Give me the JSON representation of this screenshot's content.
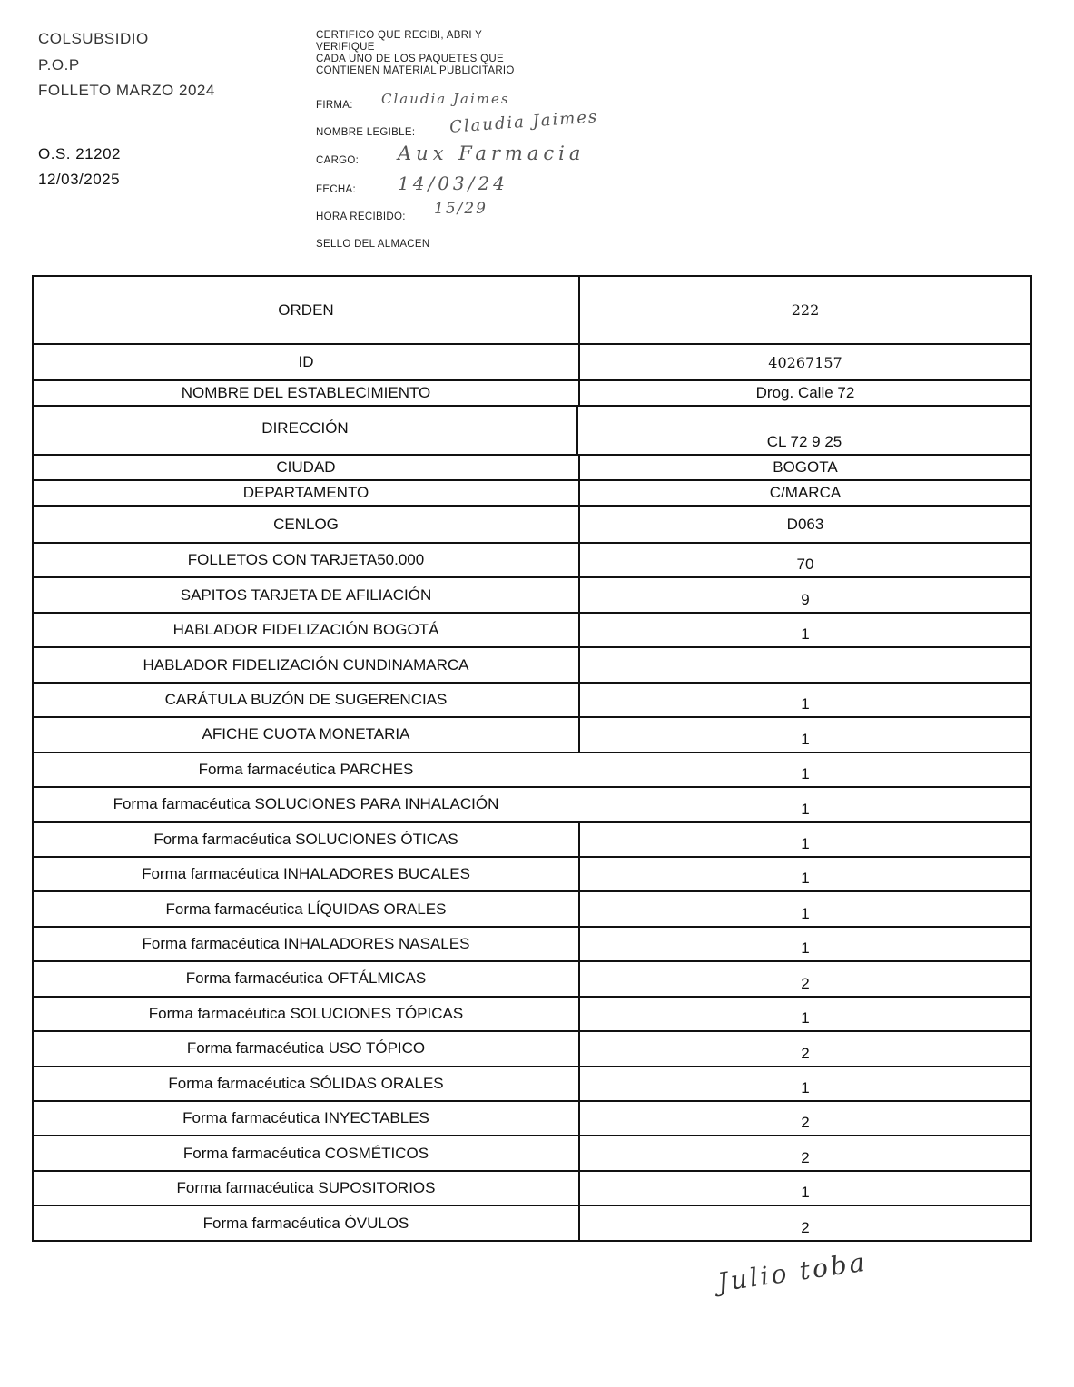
{
  "header_left": {
    "company": "COLSUBSIDIO",
    "pop": "P.O.P",
    "campaign": "FOLLETO MARZO 2024",
    "os": "O.S. 21202",
    "date": "12/03/2025"
  },
  "certification": {
    "statement_lines": [
      "CERTIFICO QUE RECIBI, ABRI Y",
      "VERIFIQUE",
      "CADA UNO DE LOS PAQUETES QUE",
      "CONTIENEN MATERIAL PUBLICITARIO"
    ],
    "fields": [
      {
        "label": "FIRMA:",
        "handwritten": "Claudia Jaimes"
      },
      {
        "label": "NOMBRE LEGIBLE:",
        "handwritten": "Claudia Jaimes"
      },
      {
        "label": "CARGO:",
        "handwritten": "Aux Farmacia"
      },
      {
        "label": "FECHA:",
        "handwritten": "14/03/24"
      },
      {
        "label": "HORA RECIBIDO:",
        "handwritten": "15/29"
      },
      {
        "label": "SELLO DEL ALMACEN",
        "handwritten": ""
      }
    ]
  },
  "table": {
    "rows": [
      {
        "label": "ORDEN",
        "value": "222"
      },
      {
        "label": "ID",
        "value": "40267157"
      },
      {
        "label": "NOMBRE DEL ESTABLECIMIENTO",
        "value": "Drog. Calle 72"
      },
      {
        "label": "DIRECCIÓN",
        "value": "CL 72 9 25"
      },
      {
        "label": "CIUDAD",
        "value": "BOGOTA"
      },
      {
        "label": "DEPARTAMENTO",
        "value": "C/MARCA"
      },
      {
        "label": "CENLOG",
        "value": "D063"
      },
      {
        "label": "FOLLETOS CON TARJETA50.000",
        "value": "70"
      },
      {
        "label": "SAPITOS TARJETA DE AFILIACIÓN",
        "value": "9"
      },
      {
        "label": "HABLADOR FIDELIZACIÓN BOGOTÁ",
        "value": "1"
      },
      {
        "label": "HABLADOR FIDELIZACIÓN CUNDINAMARCA",
        "value": ""
      },
      {
        "label": "CARÁTULA BUZÓN DE SUGERENCIAS",
        "value": "1"
      },
      {
        "label": "AFICHE CUOTA MONETARIA",
        "value": "1"
      },
      {
        "label": "Forma farmacéutica PARCHES",
        "value": "1"
      },
      {
        "label": "Forma farmacéutica SOLUCIONES PARA INHALACIÓN",
        "value": "1"
      },
      {
        "label": "Forma farmacéutica SOLUCIONES ÓTICAS",
        "value": "1"
      },
      {
        "label": "Forma farmacéutica INHALADORES BUCALES",
        "value": "1"
      },
      {
        "label": "Forma farmacéutica LÍQUIDAS ORALES",
        "value": "1"
      },
      {
        "label": "Forma farmacéutica INHALADORES NASALES",
        "value": "1"
      },
      {
        "label": "Forma farmacéutica OFTÁLMICAS",
        "value": "2"
      },
      {
        "label": "Forma farmacéutica SOLUCIONES TÓPICAS",
        "value": "1"
      },
      {
        "label": "Forma farmacéutica USO TÓPICO",
        "value": "2"
      },
      {
        "label": "Forma farmacéutica SÓLIDAS ORALES",
        "value": "1"
      },
      {
        "label": "Forma farmacéutica INYECTABLES",
        "value": "2"
      },
      {
        "label": "Forma farmacéutica COSMÉTICOS",
        "value": "2"
      },
      {
        "label": "Forma farmacéutica SUPOSITORIOS",
        "value": "1"
      },
      {
        "label": "Forma farmacéutica ÓVULOS",
        "value": "2"
      }
    ]
  },
  "signature": "Julio toba"
}
